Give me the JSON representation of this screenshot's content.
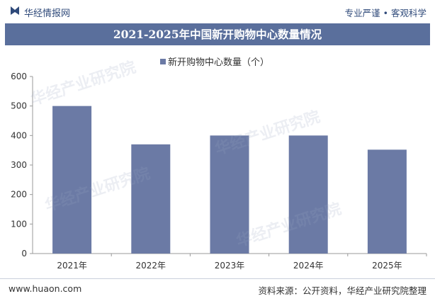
{
  "header": {
    "brand": "华经情报网",
    "slogan": "专业严谨 • 客观科学"
  },
  "watermark": "华经产业研究院",
  "footer": {
    "url": "www.huaon.com",
    "source": "资料来源：公开资料，华经产业研究院整理"
  },
  "colors": {
    "title_bg": "#5a6f9c",
    "bar": "#6b7aa5",
    "brand": "#2f4a7a"
  },
  "chart_data": {
    "type": "bar",
    "title": "2021-2025年中国新开购物中心数量情况",
    "categories": [
      "2021年",
      "2022年",
      "2023年",
      "2024年",
      "2025年"
    ],
    "series": [
      {
        "name": "新开购物中心数量（个）",
        "values": [
          500,
          370,
          400,
          400,
          352
        ]
      }
    ],
    "ylim": [
      0,
      600
    ],
    "yticks": [
      0,
      100,
      200,
      300,
      400,
      500,
      600
    ],
    "grid": false,
    "legend": "top-center"
  }
}
